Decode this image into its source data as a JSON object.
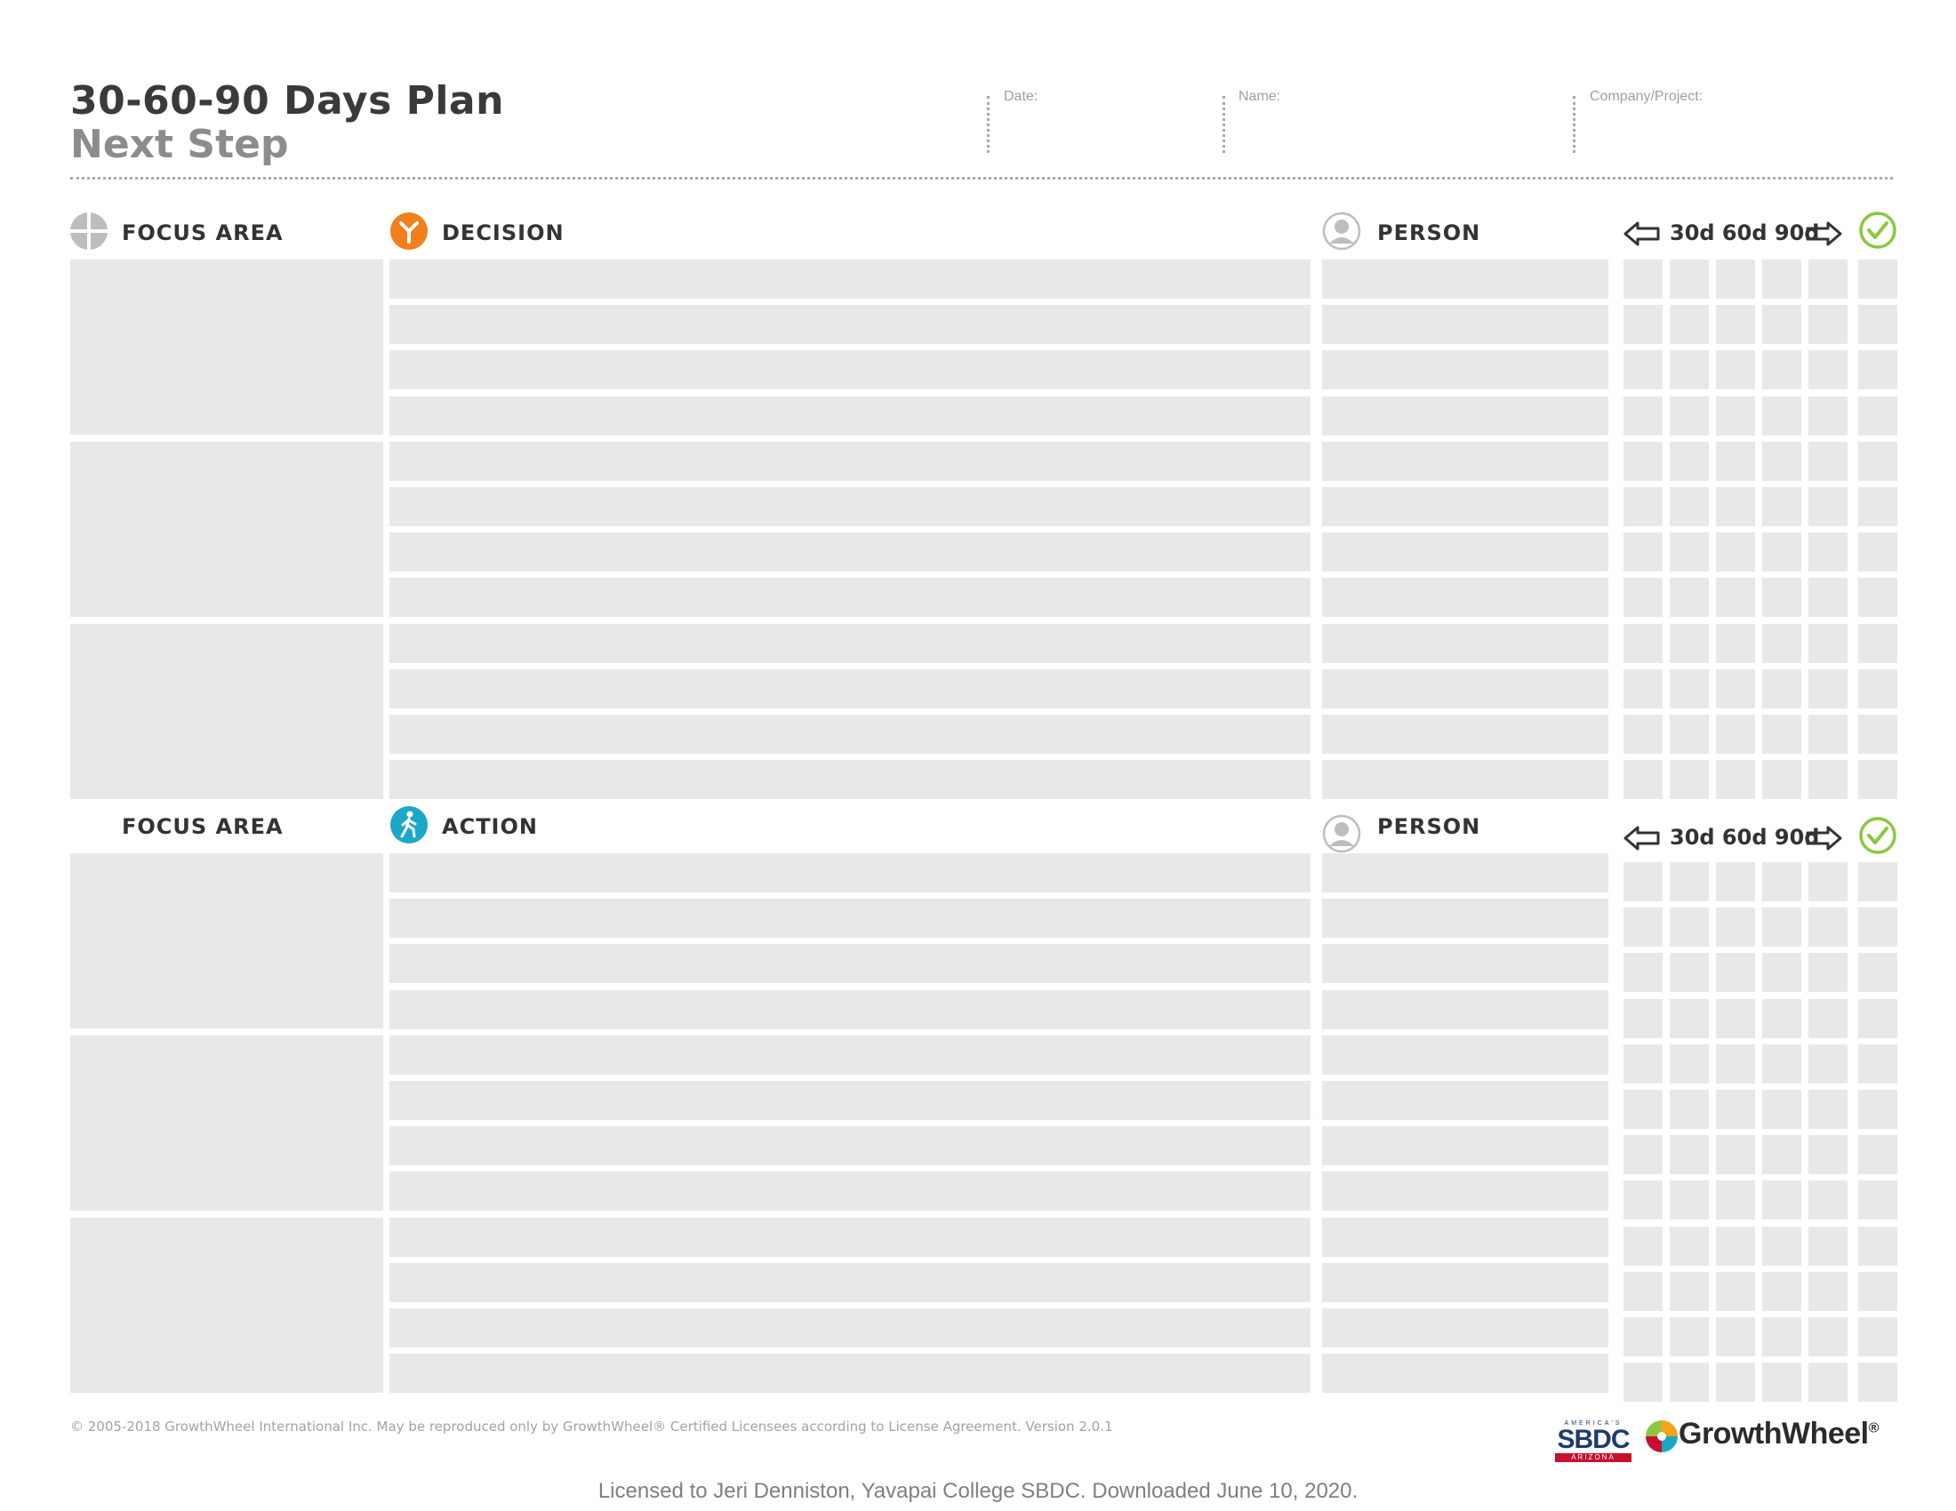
{
  "header": {
    "title": "30-60-90 Days Plan",
    "subtitle": "Next Step",
    "fields": {
      "date_label": "Date:",
      "name_label": "Name:",
      "company_label": "Company/Project:"
    }
  },
  "top_section": {
    "focus_label": "FOCUS AREA",
    "main_label": "DECISION",
    "person_label": "PERSON",
    "timeline_label": "30d 60d 90d"
  },
  "bottom_section": {
    "focus_label": "FOCUS AREA",
    "main_label": "ACTION",
    "person_label": "PERSON",
    "timeline_label": "30d 60d 90d"
  },
  "footer": {
    "copyright": "© 2005-2018 GrowthWheel International Inc. May be reproduced only by GrowthWheel® Certified Licensees according to License Agreement. Version 2.0.1",
    "licensed": "Licensed to Jeri Denniston, Yavapai College SBDC. Downloaded June 10, 2020.",
    "brand": "GrowthWheel",
    "brand_mark": "®",
    "sbdc_top": "AMERICA'S",
    "sbdc_main": "SBDC",
    "sbdc_sub": "ARIZONA"
  },
  "colors": {
    "cell_gray": "#e7e8e9",
    "decision_orange": "#f07f1c",
    "action_teal": "#1ba8c8",
    "check_green": "#8cc63f"
  }
}
